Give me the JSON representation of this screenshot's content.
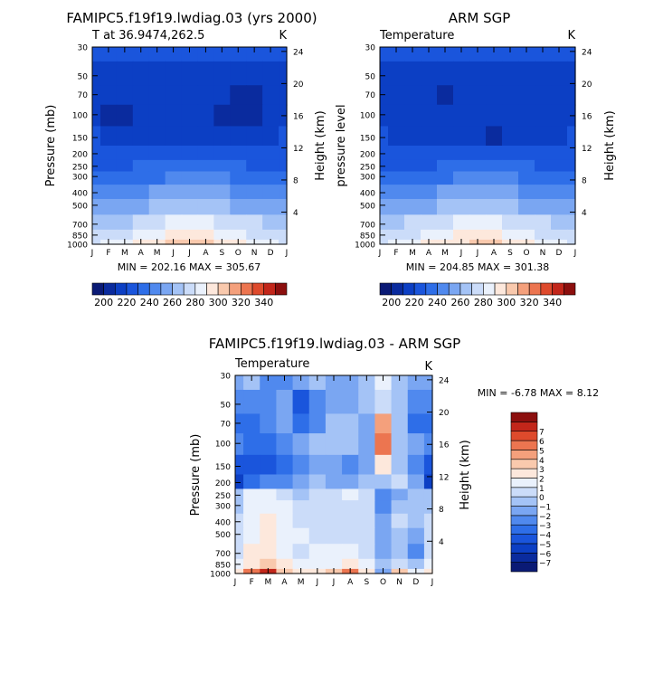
{
  "panels": [
    {
      "id": "model",
      "title": "FAMIPC5.f19f19.lwdiag.03 (yrs 2000)",
      "subtitle": "T at 36.9474,262.5",
      "units": "K",
      "ylabel": "Pressure (mb)",
      "ylabel_right": "Height (km)",
      "stats": "MIN = 202.16 MAX = 305.67"
    },
    {
      "id": "obs",
      "title": "ARM SGP",
      "subtitle": "Temperature",
      "units": "K",
      "ylabel": "pressure level",
      "ylabel_right": "Height (km)",
      "stats": "MIN = 204.85 MAX = 301.38"
    },
    {
      "id": "diff",
      "title": "FAMIPC5.f19f19.lwdiag.03 - ARM SGP",
      "subtitle": "Temperature",
      "units": "K",
      "ylabel": "Pressure (mb)",
      "ylabel_right": "Height (km)",
      "stats": "MIN =    -6.78 MAX =     8.12"
    }
  ],
  "chart_data": [
    {
      "type": "heatmap",
      "title": "FAMIPC5.f19f19.lwdiag.03 (yrs 2000)",
      "subtitle": "T at 36.9474,262.5",
      "x": [
        "J",
        "F",
        "M",
        "A",
        "M",
        "J",
        "J",
        "A",
        "S",
        "O",
        "N",
        "D",
        "J"
      ],
      "pressure_levels": [
        30,
        50,
        70,
        100,
        150,
        200,
        250,
        300,
        400,
        500,
        700,
        850,
        1000
      ],
      "height_ticks_km": [
        4,
        8,
        12,
        16,
        20,
        24
      ],
      "ylabel": "Pressure (mb)",
      "ylabel_right": "Height (km)",
      "units": "K",
      "min": 202.16,
      "max": 305.67,
      "colorbar_levels": [
        200,
        210,
        220,
        230,
        240,
        250,
        260,
        270,
        280,
        290,
        300,
        310,
        320,
        330,
        340
      ],
      "colorbar_labels": [
        "200",
        "220",
        "240",
        "260",
        "280",
        "300",
        "320",
        "340"
      ],
      "colorbar_colors": [
        "#0a1a75",
        "#0a2b9e",
        "#0c3fc4",
        "#1a55dc",
        "#2e6ee8",
        "#5089ee",
        "#7aa6f2",
        "#a4c3f6",
        "#cbdcf9",
        "#eaf1fc",
        "#fde8dc",
        "#f9c9ad",
        "#f4a07c",
        "#ec7550",
        "#de4a2c",
        "#c2261a",
        "#8c0f0e"
      ],
      "z": [
        [
          229,
          228,
          227,
          226,
          226,
          227,
          227,
          227,
          228,
          229,
          229,
          229,
          229
        ],
        [
          216,
          214,
          213,
          214,
          216,
          217,
          217,
          215,
          214,
          213,
          213,
          215,
          216
        ],
        [
          212,
          210,
          210,
          211,
          213,
          214,
          213,
          212,
          210,
          208,
          209,
          212,
          212
        ],
        [
          211,
          209,
          209,
          210,
          212,
          213,
          212,
          211,
          209,
          207,
          208,
          211,
          211
        ],
        [
          221,
          219,
          218,
          218,
          219,
          219,
          219,
          218,
          217,
          216,
          217,
          219,
          221
        ],
        [
          223,
          222,
          222,
          223,
          224,
          225,
          225,
          224,
          223,
          222,
          222,
          222,
          223
        ],
        [
          229,
          229,
          229,
          230,
          232,
          234,
          235,
          234,
          232,
          230,
          229,
          229,
          229
        ],
        [
          234,
          234,
          235,
          237,
          239,
          241,
          242,
          242,
          240,
          237,
          235,
          234,
          234
        ],
        [
          245,
          245,
          246,
          248,
          250,
          252,
          253,
          253,
          251,
          248,
          246,
          245,
          245
        ],
        [
          253,
          254,
          255,
          258,
          261,
          264,
          266,
          265,
          262,
          258,
          255,
          254,
          253
        ],
        [
          266,
          267,
          269,
          272,
          277,
          281,
          284,
          283,
          279,
          274,
          270,
          267,
          266
        ],
        [
          273,
          274,
          277,
          282,
          287,
          292,
          296,
          294,
          289,
          283,
          277,
          274,
          273
        ],
        [
          279,
          281,
          285,
          290,
          296,
          301,
          305,
          303,
          297,
          290,
          284,
          281,
          279
        ]
      ]
    },
    {
      "type": "heatmap",
      "title": "ARM SGP",
      "subtitle": "Temperature",
      "x": [
        "J",
        "F",
        "M",
        "A",
        "M",
        "J",
        "J",
        "A",
        "S",
        "O",
        "N",
        "D",
        "J"
      ],
      "pressure_levels": [
        30,
        50,
        70,
        100,
        150,
        200,
        250,
        300,
        400,
        500,
        700,
        850,
        1000
      ],
      "height_ticks_km": [
        4,
        8,
        12,
        16,
        20,
        24
      ],
      "ylabel": "pressure level",
      "ylabel_right": "Height (km)",
      "units": "K",
      "min": 204.85,
      "max": 301.38,
      "colorbar_levels": [
        200,
        210,
        220,
        230,
        240,
        250,
        260,
        270,
        280,
        290,
        300,
        310,
        320,
        330,
        340
      ],
      "colorbar_labels": [
        "200",
        "220",
        "240",
        "260",
        "280",
        "300",
        "320",
        "340"
      ],
      "colorbar_colors": [
        "#0a1a75",
        "#0a2b9e",
        "#0c3fc4",
        "#1a55dc",
        "#2e6ee8",
        "#5089ee",
        "#7aa6f2",
        "#a4c3f6",
        "#cbdcf9",
        "#eaf1fc",
        "#fde8dc",
        "#f9c9ad",
        "#f4a07c",
        "#ec7550",
        "#de4a2c",
        "#c2261a",
        "#8c0f0e"
      ],
      "z": [
        [
          226,
          226,
          226,
          226,
          226,
          227,
          229,
          229,
          227,
          226,
          226,
          226,
          226
        ],
        [
          218,
          216,
          214,
          213,
          213,
          214,
          216,
          216,
          215,
          214,
          214,
          216,
          218
        ],
        [
          216,
          214,
          212,
          210,
          209,
          210,
          212,
          212,
          212,
          211,
          211,
          213,
          216
        ],
        [
          213,
          213,
          213,
          212,
          211,
          211,
          210,
          210,
          211,
          212,
          212,
          212,
          213
        ],
        [
          220,
          219,
          218,
          217,
          214,
          212,
          210,
          209,
          210,
          212,
          214,
          217,
          220
        ],
        [
          221,
          221,
          221,
          221,
          221,
          222,
          222,
          222,
          222,
          222,
          222,
          221,
          221
        ],
        [
          226,
          227,
          228,
          229,
          230,
          231,
          232,
          232,
          231,
          230,
          228,
          227,
          226
        ],
        [
          233,
          234,
          235,
          237,
          239,
          241,
          242,
          242,
          240,
          237,
          235,
          234,
          233
        ],
        [
          244,
          245,
          246,
          248,
          250,
          252,
          253,
          253,
          251,
          248,
          246,
          245,
          244
        ],
        [
          253,
          254,
          256,
          259,
          262,
          265,
          266,
          265,
          262,
          259,
          256,
          254,
          253
        ],
        [
          266,
          268,
          270,
          273,
          277,
          281,
          283,
          282,
          279,
          275,
          271,
          268,
          266
        ],
        [
          273,
          275,
          278,
          282,
          287,
          292,
          295,
          293,
          289,
          283,
          278,
          275,
          273
        ],
        [
          278,
          281,
          285,
          290,
          295,
          299,
          301,
          300,
          296,
          290,
          284,
          280,
          278
        ]
      ]
    },
    {
      "type": "heatmap",
      "title": "FAMIPC5.f19f19.lwdiag.03 - ARM SGP",
      "subtitle": "Temperature",
      "x": [
        "J",
        "F",
        "M",
        "A",
        "M",
        "J",
        "J",
        "A",
        "S",
        "O",
        "N",
        "D",
        "J"
      ],
      "pressure_levels": [
        30,
        50,
        70,
        100,
        150,
        200,
        250,
        300,
        400,
        500,
        700,
        850,
        1000
      ],
      "height_ticks_km": [
        4,
        8,
        12,
        16,
        20,
        24
      ],
      "ylabel": "Pressure (mb)",
      "ylabel_right": "Height (km)",
      "units": "K",
      "min": -6.78,
      "max": 8.12,
      "colorbar_levels": [
        -7,
        -6,
        -5,
        -4,
        -3,
        -2,
        -1,
        0,
        1,
        2,
        3,
        4,
        5,
        6,
        7
      ],
      "colorbar_labels": [
        "-7",
        "-6",
        "-5",
        "-4",
        "-3",
        "-2",
        "-1",
        "0",
        "1",
        "2",
        "3",
        "4",
        "5",
        "6",
        "7"
      ],
      "colorbar_colors": [
        "#0a1a75",
        "#0a2b9e",
        "#0c3fc4",
        "#1a55dc",
        "#2e6ee8",
        "#5089ee",
        "#7aa6f2",
        "#a4c3f6",
        "#cbdcf9",
        "#eaf1fc",
        "#fde8dc",
        "#f9c9ad",
        "#f4a07c",
        "#ec7550",
        "#de4a2c",
        "#c2261a",
        "#8c0f0e"
      ],
      "z": [
        [
          -2,
          -1,
          -3,
          -3,
          -2,
          -1,
          -2,
          -2,
          -1,
          1,
          -1,
          -2,
          -2
        ],
        [
          -3,
          -3,
          -3,
          -2,
          -5,
          -3,
          -2,
          -2,
          -1,
          0,
          -1,
          -3,
          -3
        ],
        [
          -4,
          -4,
          -3,
          -2,
          -4,
          -3,
          -1,
          -1,
          -2,
          4,
          -1,
          -4,
          -4
        ],
        [
          -3,
          -4,
          -4,
          -3,
          -2,
          -1,
          -1,
          -1,
          -2,
          5,
          -1,
          -2,
          -3
        ],
        [
          -5,
          -5,
          -5,
          -4,
          -3,
          -2,
          -2,
          -3,
          -2,
          2,
          -1,
          -3,
          -5
        ],
        [
          -6,
          -4,
          -3,
          -3,
          -2,
          -1,
          -2,
          -2,
          -1,
          -1,
          0,
          -2,
          -6
        ],
        [
          -1,
          1,
          1,
          0,
          -1,
          0,
          0,
          1,
          0,
          -3,
          -2,
          -1,
          -1
        ],
        [
          -1,
          1,
          1,
          1,
          0,
          0,
          0,
          0,
          0,
          -3,
          -1,
          -1,
          -1
        ],
        [
          0,
          1,
          2,
          1,
          0,
          0,
          0,
          0,
          0,
          -2,
          0,
          -1,
          0
        ],
        [
          0,
          1,
          2,
          1,
          1,
          0,
          0,
          0,
          0,
          -2,
          -1,
          -2,
          0
        ],
        [
          0,
          2,
          2,
          1,
          0,
          1,
          1,
          1,
          0,
          -2,
          -1,
          -3,
          0
        ],
        [
          1,
          2,
          3,
          2,
          1,
          1,
          1,
          2,
          1,
          -1,
          0,
          -1,
          1
        ],
        [
          2,
          5,
          7,
          3,
          2,
          2,
          3,
          5,
          2,
          -2,
          3,
          1,
          2
        ]
      ]
    }
  ]
}
